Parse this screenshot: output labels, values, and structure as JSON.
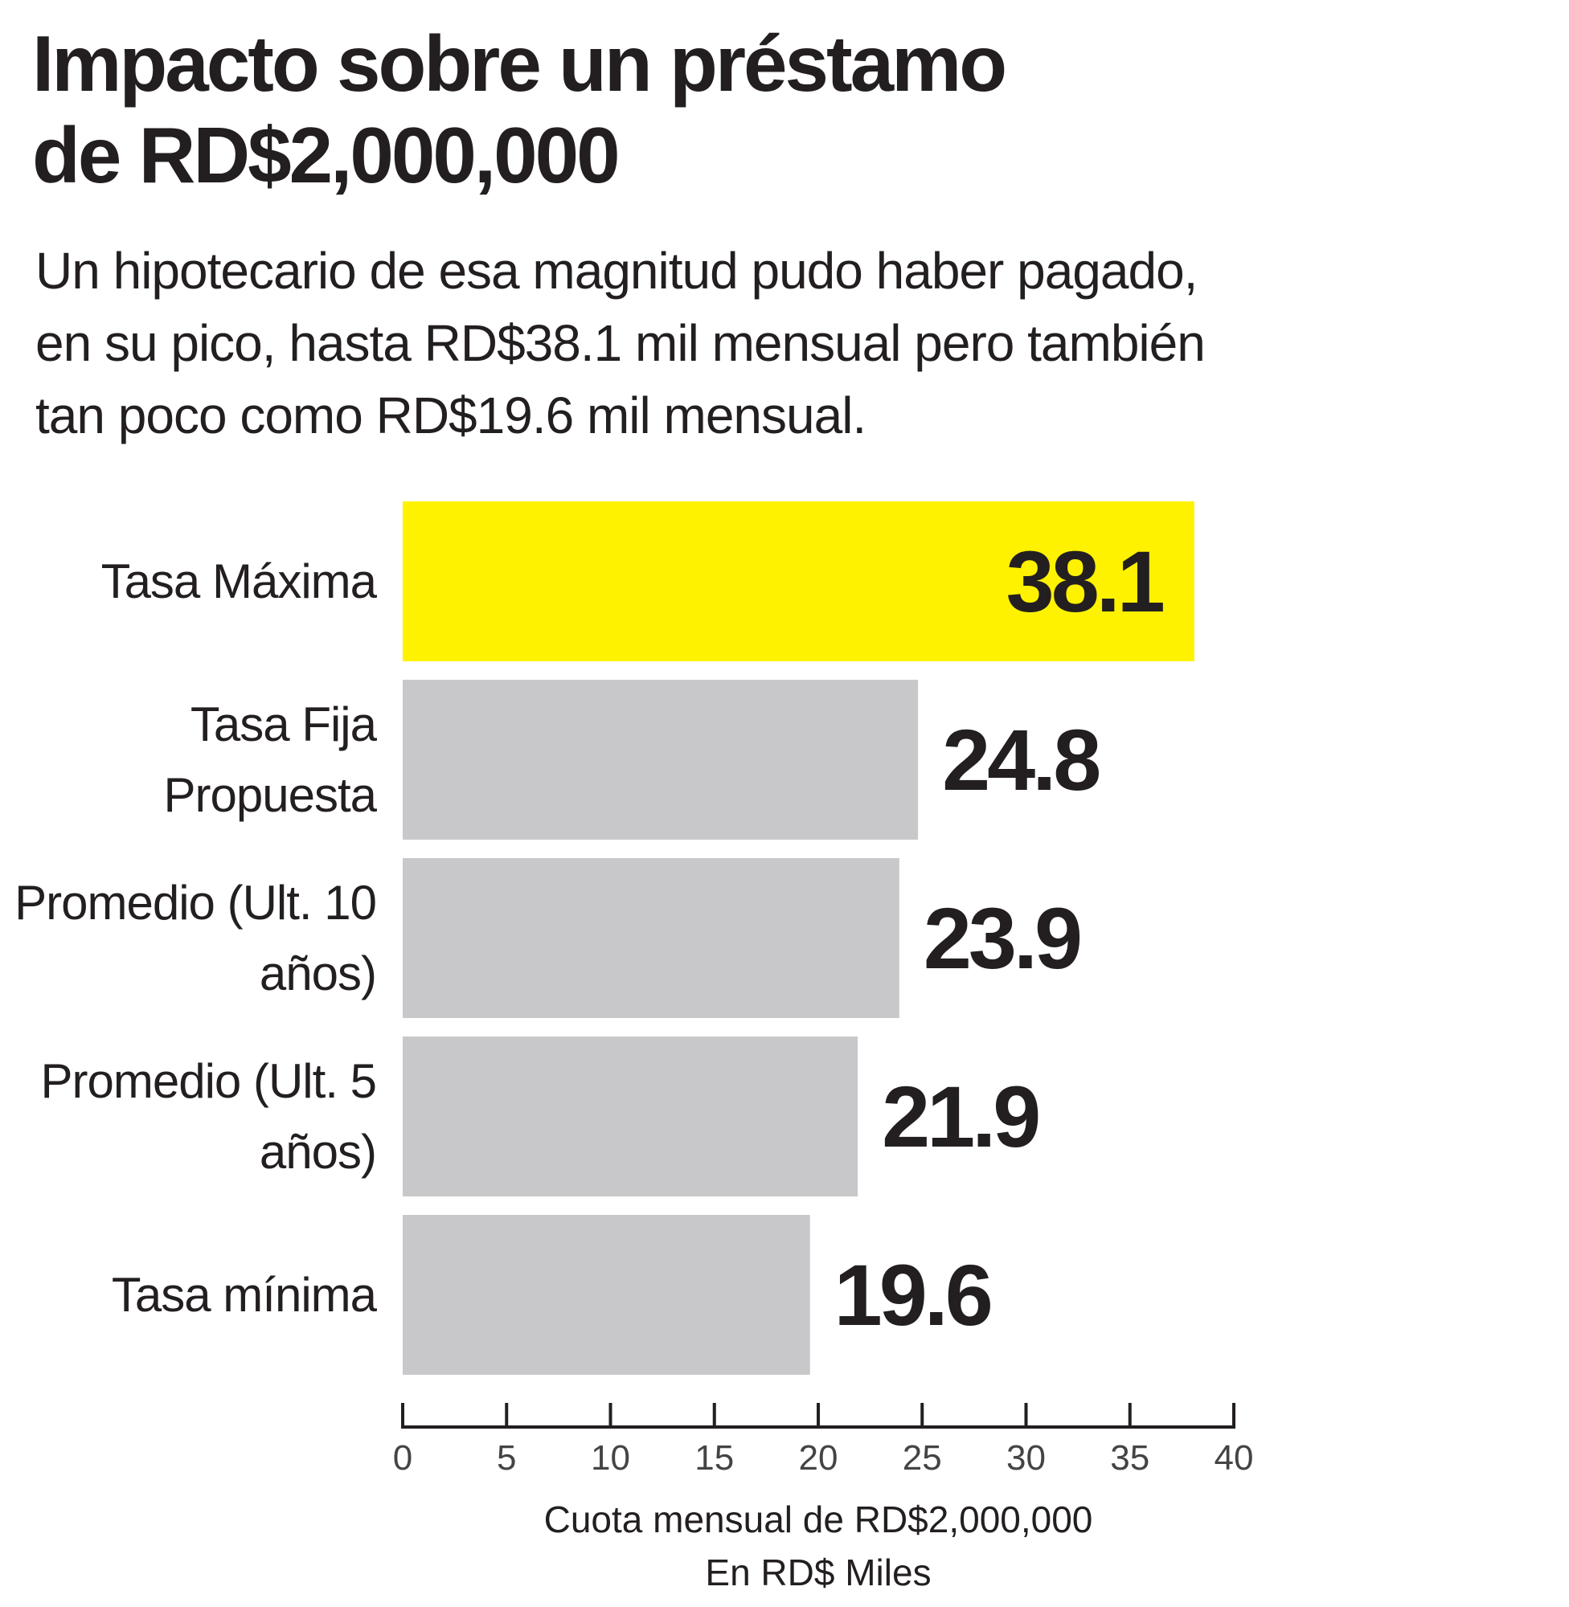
{
  "chart_data": {
    "type": "hbar",
    "title": "Impacto sobre un préstamo\nde RD$2,000,000",
    "subtitle": "Un hipotecario de esa magnitud pudo haber pagado,\nen su pico, hasta RD$38.1 mil mensual pero también\ntan poco como RD$19.6 mil mensual.",
    "categories": [
      "Tasa Máxima",
      "Tasa Fija\nPropuesta",
      "Promedio\n(Ult. 10 años)",
      "Promedio\n(Ult. 5 años)",
      "Tasa mínima"
    ],
    "values": [
      38.1,
      24.8,
      23.9,
      21.9,
      19.6
    ],
    "colors": [
      "#fff200",
      "#c8c8ca",
      "#c8c8ca",
      "#c8c8ca",
      "#c8c8ca"
    ],
    "xlim": [
      0,
      40
    ],
    "xticks": [
      0,
      5,
      10,
      15,
      20,
      25,
      30,
      35,
      40
    ],
    "xlabel": "Cuota mensual de RD$2,000,000\nEn RD$ Miles"
  }
}
